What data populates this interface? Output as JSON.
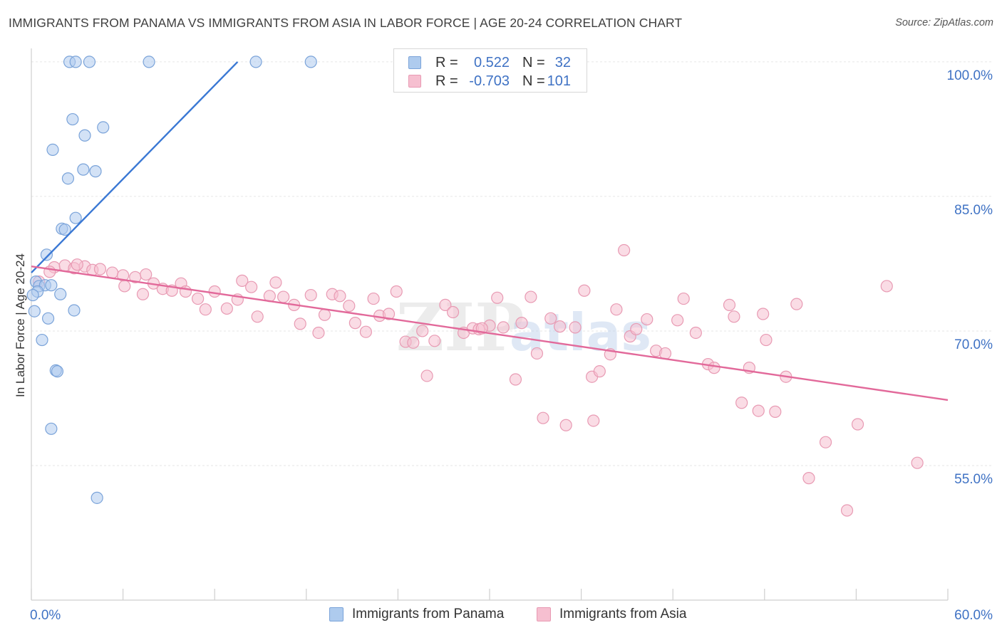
{
  "title": "IMMIGRANTS FROM PANAMA VS IMMIGRANTS FROM ASIA IN LABOR FORCE | AGE 20-24 CORRELATION CHART",
  "source": "Source: ZipAtlas.com",
  "watermark": {
    "zip": "ZIP",
    "atlas": "atlas"
  },
  "legend": {
    "rows": [
      {
        "r_label": "R =",
        "r_value": "0.522",
        "n_label": "N =",
        "n_value": "32"
      },
      {
        "r_label": "R =",
        "r_value": "-0.703",
        "n_label": "N =",
        "n_value": "101"
      }
    ]
  },
  "bottom_legend": [
    "Immigrants from Panama",
    "Immigrants from Asia"
  ],
  "colors": {
    "panama_fill": "#aecbee",
    "panama_stroke": "#7aa3d9",
    "panama_line": "#3a78d4",
    "asia_fill": "#f6bfd0",
    "asia_stroke": "#e89ab3",
    "asia_line": "#e2699a",
    "axis_label": "#3f72c4",
    "grid": "#e6e6e6"
  },
  "chart_data": {
    "type": "scatter",
    "title": "IMMIGRANTS FROM PANAMA VS IMMIGRANTS FROM ASIA IN LABOR FORCE | AGE 20-24 CORRELATION CHART",
    "xlabel": "",
    "ylabel": "In Labor Force | Age 20-24",
    "xlim": [
      0,
      60
    ],
    "ylim": [
      40,
      101.5
    ],
    "x_tick_labels": [
      "0.0%",
      "60.0%"
    ],
    "y_ticks": [
      55,
      70,
      85,
      100
    ],
    "y_tick_labels": [
      "55.0%",
      "70.0%",
      "85.0%",
      "100.0%"
    ],
    "grid": true,
    "series": [
      {
        "name": "Immigrants from Panama",
        "R": 0.522,
        "N": 32,
        "trend": {
          "x0": 0.0,
          "y0": 76.5,
          "x1": 13.5,
          "y1": 100.0
        },
        "points": [
          [
            2.5,
            100
          ],
          [
            2.9,
            100
          ],
          [
            3.8,
            100
          ],
          [
            7.7,
            100
          ],
          [
            14.7,
            100
          ],
          [
            18.3,
            100
          ],
          [
            2.7,
            93.6
          ],
          [
            4.7,
            92.7
          ],
          [
            3.5,
            91.8
          ],
          [
            1.4,
            90.2
          ],
          [
            3.4,
            88.0
          ],
          [
            4.2,
            87.8
          ],
          [
            2.4,
            87.0
          ],
          [
            2.9,
            82.6
          ],
          [
            2.0,
            81.4
          ],
          [
            2.2,
            81.3
          ],
          [
            1.0,
            78.5
          ],
          [
            0.3,
            75.5
          ],
          [
            0.5,
            75.0
          ],
          [
            0.9,
            75.1
          ],
          [
            1.3,
            75.1
          ],
          [
            0.4,
            74.4
          ],
          [
            1.9,
            74.1
          ],
          [
            0.2,
            72.2
          ],
          [
            2.8,
            72.3
          ],
          [
            1.1,
            71.4
          ],
          [
            0.7,
            69.0
          ],
          [
            1.6,
            65.6
          ],
          [
            1.7,
            65.5
          ],
          [
            1.3,
            59.1
          ],
          [
            4.3,
            51.4
          ],
          [
            0.1,
            74.0
          ]
        ]
      },
      {
        "name": "Immigrants from Asia",
        "R": -0.703,
        "N": 101,
        "trend": {
          "x0": 0.0,
          "y0": 77.2,
          "x1": 60.0,
          "y1": 62.3
        },
        "points": [
          [
            0.5,
            75.5
          ],
          [
            1.5,
            77.1
          ],
          [
            2.2,
            77.3
          ],
          [
            2.8,
            77.0
          ],
          [
            3.5,
            77.2
          ],
          [
            4.0,
            76.8
          ],
          [
            4.5,
            76.9
          ],
          [
            5.3,
            76.5
          ],
          [
            6.0,
            76.2
          ],
          [
            6.8,
            76.0
          ],
          [
            7.5,
            76.3
          ],
          [
            1.2,
            76.6
          ],
          [
            3.0,
            77.4
          ],
          [
            6.1,
            75.0
          ],
          [
            7.3,
            74.1
          ],
          [
            8.0,
            75.3
          ],
          [
            8.6,
            74.7
          ],
          [
            9.2,
            74.5
          ],
          [
            9.8,
            75.3
          ],
          [
            10.1,
            74.4
          ],
          [
            10.9,
            73.6
          ],
          [
            11.4,
            72.4
          ],
          [
            12.0,
            74.4
          ],
          [
            12.8,
            72.5
          ],
          [
            13.5,
            73.5
          ],
          [
            13.8,
            75.6
          ],
          [
            14.4,
            74.9
          ],
          [
            14.8,
            71.6
          ],
          [
            15.6,
            73.9
          ],
          [
            16.0,
            75.4
          ],
          [
            16.5,
            73.8
          ],
          [
            17.2,
            72.9
          ],
          [
            17.6,
            70.8
          ],
          [
            18.3,
            74.0
          ],
          [
            18.8,
            69.8
          ],
          [
            19.2,
            71.8
          ],
          [
            19.7,
            74.1
          ],
          [
            20.2,
            73.9
          ],
          [
            20.8,
            72.8
          ],
          [
            21.2,
            70.9
          ],
          [
            21.9,
            69.9
          ],
          [
            22.4,
            73.6
          ],
          [
            22.8,
            71.7
          ],
          [
            23.4,
            71.9
          ],
          [
            23.9,
            74.4
          ],
          [
            24.5,
            68.8
          ],
          [
            25.0,
            68.7
          ],
          [
            25.6,
            70.0
          ],
          [
            25.9,
            65.0
          ],
          [
            26.4,
            68.9
          ],
          [
            27.1,
            72.9
          ],
          [
            27.6,
            72.1
          ],
          [
            28.3,
            69.8
          ],
          [
            28.9,
            70.3
          ],
          [
            29.3,
            70.2
          ],
          [
            30.0,
            70.6
          ],
          [
            30.5,
            73.7
          ],
          [
            30.9,
            70.4
          ],
          [
            31.7,
            64.6
          ],
          [
            32.1,
            70.9
          ],
          [
            32.7,
            73.8
          ],
          [
            33.1,
            67.5
          ],
          [
            33.5,
            60.3
          ],
          [
            34.0,
            71.4
          ],
          [
            34.6,
            70.5
          ],
          [
            35.0,
            59.5
          ],
          [
            35.6,
            70.4
          ],
          [
            36.2,
            74.5
          ],
          [
            36.7,
            64.9
          ],
          [
            37.2,
            65.5
          ],
          [
            37.9,
            67.4
          ],
          [
            38.3,
            72.4
          ],
          [
            38.8,
            79.0
          ],
          [
            39.2,
            69.4
          ],
          [
            39.6,
            70.2
          ],
          [
            40.3,
            71.3
          ],
          [
            40.9,
            67.8
          ],
          [
            41.5,
            67.5
          ],
          [
            42.3,
            71.2
          ],
          [
            42.7,
            73.6
          ],
          [
            43.5,
            69.8
          ],
          [
            44.3,
            66.3
          ],
          [
            44.7,
            65.9
          ],
          [
            45.7,
            72.9
          ],
          [
            46.0,
            71.6
          ],
          [
            46.5,
            62.0
          ],
          [
            47.0,
            65.9
          ],
          [
            47.6,
            61.1
          ],
          [
            47.9,
            71.9
          ],
          [
            48.1,
            69.0
          ],
          [
            48.7,
            61.0
          ],
          [
            49.4,
            64.9
          ],
          [
            50.1,
            73.0
          ],
          [
            50.9,
            53.6
          ],
          [
            52.0,
            57.6
          ],
          [
            53.4,
            50.0
          ],
          [
            54.1,
            59.6
          ],
          [
            56.0,
            75.0
          ],
          [
            58.0,
            55.3
          ],
          [
            29.5,
            70.3
          ],
          [
            36.8,
            60.0
          ]
        ]
      }
    ]
  }
}
